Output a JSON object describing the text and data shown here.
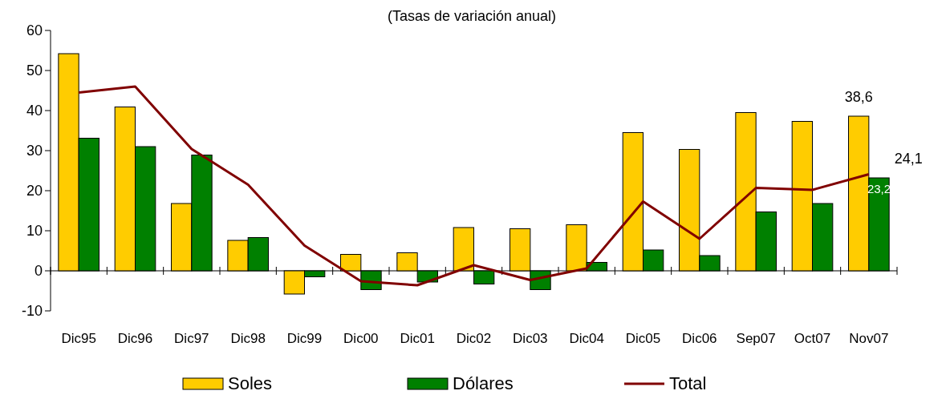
{
  "chart_data": {
    "type": "bar",
    "title": "(Tasas de variación anual)",
    "categories": [
      "Dic95",
      "Dic96",
      "Dic97",
      "Dic98",
      "Dic99",
      "Dic00",
      "Dic01",
      "Dic02",
      "Dic03",
      "Dic04",
      "Dic05",
      "Dic06",
      "Sep07",
      "Oct07",
      "Nov07"
    ],
    "series": [
      {
        "name": "Soles",
        "color": "#ffcc00",
        "values": [
          54.2,
          40.9,
          16.8,
          7.6,
          -5.8,
          4.1,
          4.5,
          10.8,
          10.5,
          11.5,
          34.5,
          30.3,
          39.5,
          37.3,
          38.6
        ],
        "value_labels": [
          null,
          null,
          null,
          null,
          null,
          null,
          null,
          null,
          null,
          null,
          null,
          null,
          null,
          null,
          "38,6"
        ]
      },
      {
        "name": "Dólares",
        "color": "#008000",
        "values": [
          33.1,
          31.0,
          28.9,
          8.3,
          -1.5,
          -4.7,
          -2.8,
          -3.3,
          -4.7,
          2.1,
          5.2,
          3.8,
          14.7,
          16.8,
          23.2
        ],
        "value_labels": [
          null,
          null,
          null,
          null,
          null,
          null,
          null,
          null,
          null,
          null,
          null,
          null,
          null,
          null,
          "23,2"
        ]
      },
      {
        "name": "Total",
        "type": "line",
        "color": "#800000",
        "values": [
          44.5,
          46.0,
          30.4,
          21.5,
          6.3,
          -2.6,
          -3.6,
          1.4,
          -2.3,
          0.6,
          17.3,
          8.0,
          20.7,
          20.2,
          24.1
        ],
        "value_labels": [
          null,
          null,
          null,
          null,
          null,
          null,
          null,
          null,
          null,
          null,
          null,
          null,
          null,
          null,
          "24,1"
        ]
      }
    ],
    "ylim": [
      -10,
      60
    ],
    "yticks": [
      -10,
      0,
      10,
      20,
      30,
      40,
      50,
      60
    ],
    "legend": "bottom"
  }
}
